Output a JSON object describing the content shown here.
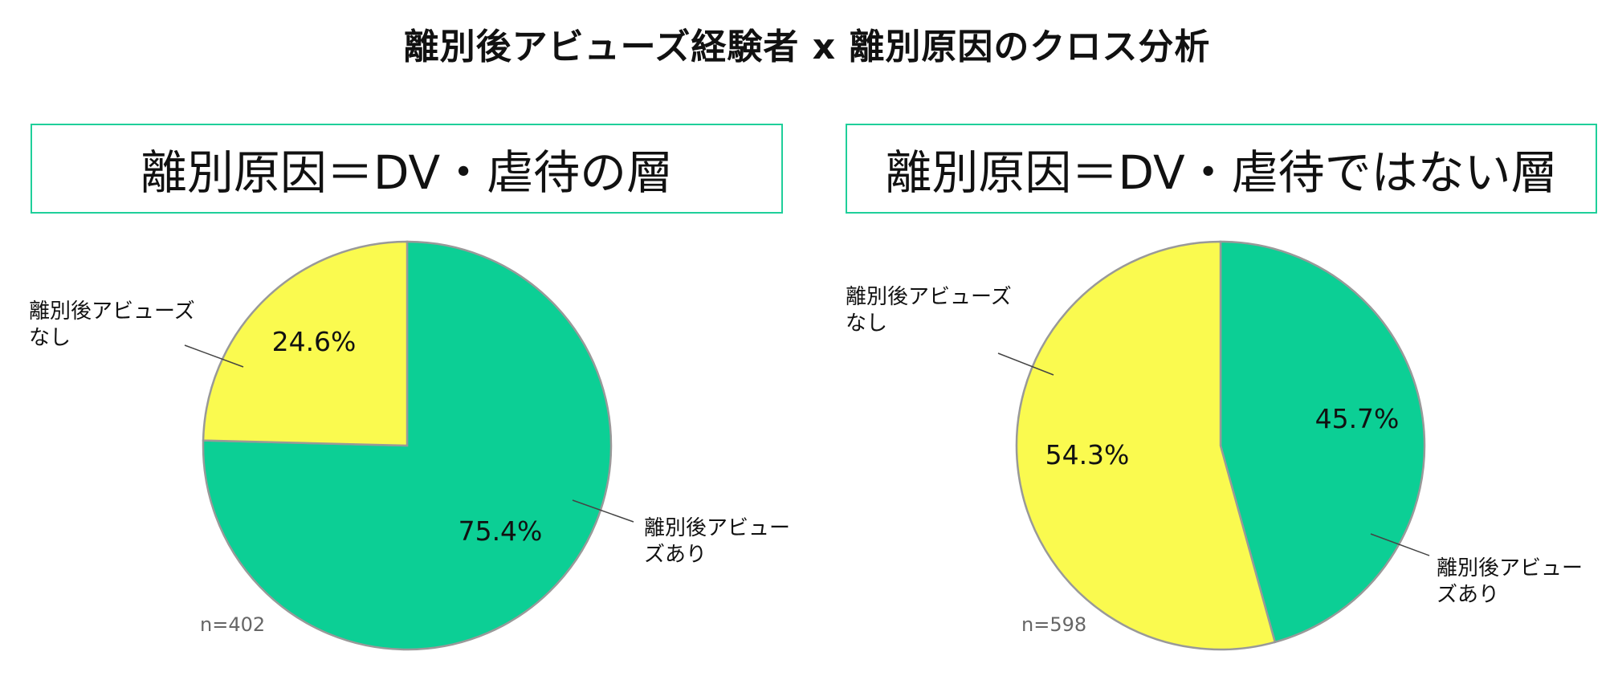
{
  "title": "離別後アビューズ経験者 x 離別原因のクロス分析",
  "colors": {
    "abuse_yes": "#0ccf95",
    "abuse_no": "#fafa4f",
    "border": "#1fcf9a",
    "outline": "#999999"
  },
  "chart_data": [
    {
      "type": "pie",
      "title": "離別原因＝DV・虐待の層",
      "n_label": "n=402",
      "slices": [
        {
          "label": "離別後アビューズあり",
          "value": 75.4,
          "value_label": "75.4%",
          "color": "#0ccf95"
        },
        {
          "label": "離別後アビューズなし",
          "value": 24.6,
          "value_label": "24.6%",
          "color": "#fafa4f"
        }
      ]
    },
    {
      "type": "pie",
      "title": "離別原因＝DV・虐待ではない層",
      "n_label": "n=598",
      "slices": [
        {
          "label": "離別後アビューズあり",
          "value": 45.7,
          "value_label": "45.7%",
          "color": "#0ccf95"
        },
        {
          "label": "離別後アビューズなし",
          "value": 54.3,
          "value_label": "54.3%",
          "color": "#fafa4f"
        }
      ]
    }
  ]
}
